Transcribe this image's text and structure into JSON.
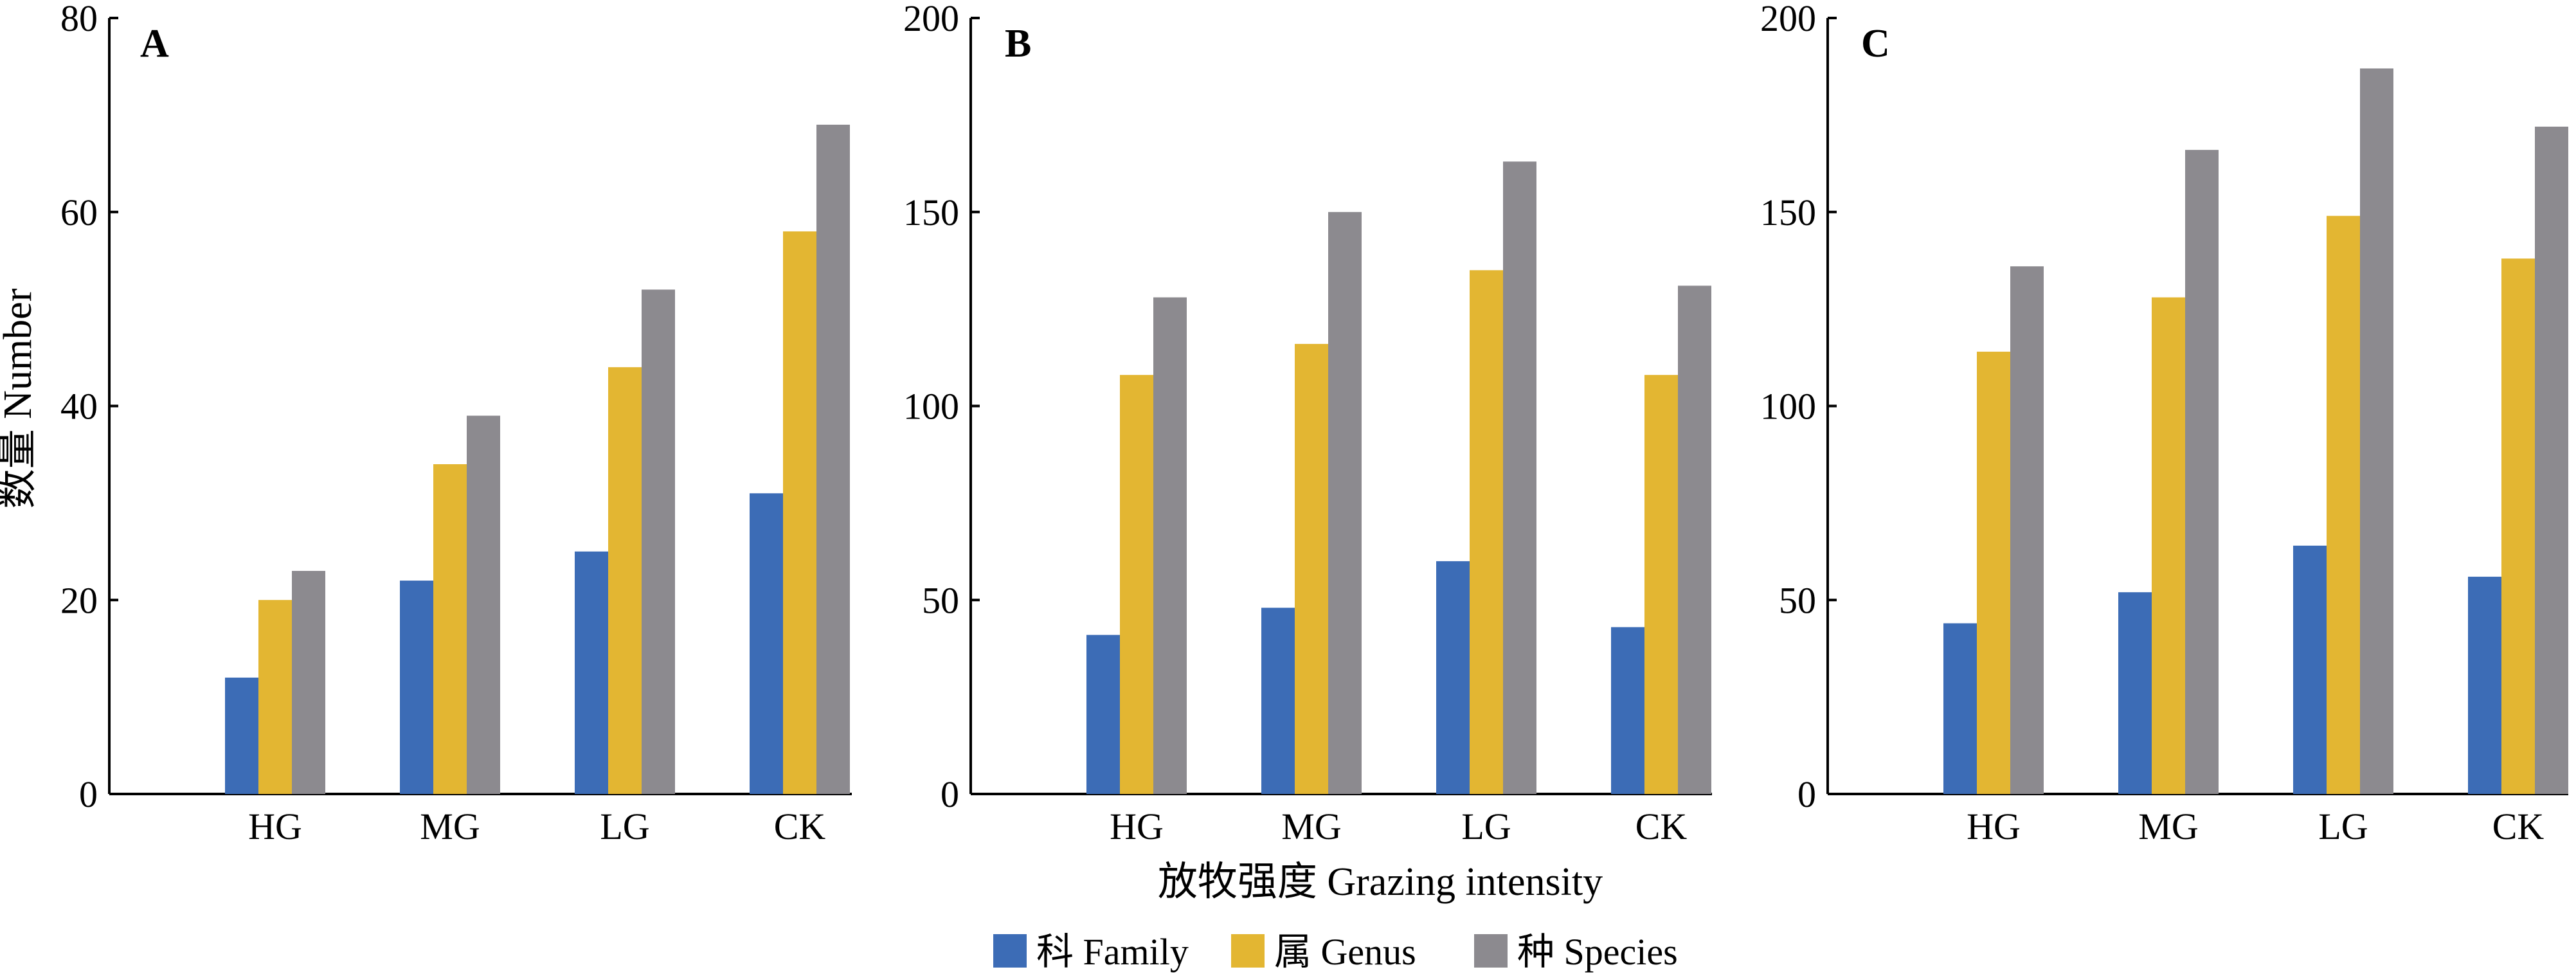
{
  "figure": {
    "ylabel": "数量 Number",
    "xlabel": "放牧强度 Grazing intensity",
    "legend": {
      "placement": "bottom-center",
      "items": [
        {
          "label": "科 Family",
          "color": "#3c6cb6"
        },
        {
          "label": "属 Genus",
          "color": "#e3b632"
        },
        {
          "label": "种 Species",
          "color": "#8c8a8f"
        }
      ]
    }
  },
  "chart_data": [
    {
      "type": "bar",
      "panel_label": "A",
      "categories": [
        "HG",
        "MG",
        "LG",
        "CK"
      ],
      "series": [
        {
          "name": "科 Family",
          "values": [
            12,
            22,
            25,
            31
          ]
        },
        {
          "name": "属 Genus",
          "values": [
            20,
            34,
            44,
            58
          ]
        },
        {
          "name": "种 Species",
          "values": [
            23,
            39,
            52,
            69
          ]
        }
      ],
      "ylim": [
        0,
        80
      ],
      "yticks": [
        "0",
        "20",
        "40",
        "60",
        "80"
      ],
      "grid": false
    },
    {
      "type": "bar",
      "panel_label": "B",
      "categories": [
        "HG",
        "MG",
        "LG",
        "CK"
      ],
      "series": [
        {
          "name": "科 Family",
          "values": [
            41,
            48,
            60,
            43
          ]
        },
        {
          "name": "属 Genus",
          "values": [
            108,
            116,
            135,
            108
          ]
        },
        {
          "name": "种 Species",
          "values": [
            128,
            150,
            163,
            131
          ]
        }
      ],
      "ylim": [
        0,
        200
      ],
      "yticks": [
        "0",
        "50",
        "100",
        "150",
        "200"
      ],
      "grid": false
    },
    {
      "type": "bar",
      "panel_label": "C",
      "categories": [
        "HG",
        "MG",
        "LG",
        "CK"
      ],
      "series": [
        {
          "name": "科 Family",
          "values": [
            44,
            52,
            64,
            56
          ]
        },
        {
          "name": "属 Genus",
          "values": [
            114,
            128,
            149,
            138
          ]
        },
        {
          "name": "种 Species",
          "values": [
            136,
            166,
            187,
            172
          ]
        }
      ],
      "ylim": [
        0,
        200
      ],
      "yticks": [
        "0",
        "50",
        "100",
        "150",
        "200"
      ],
      "grid": false
    }
  ]
}
